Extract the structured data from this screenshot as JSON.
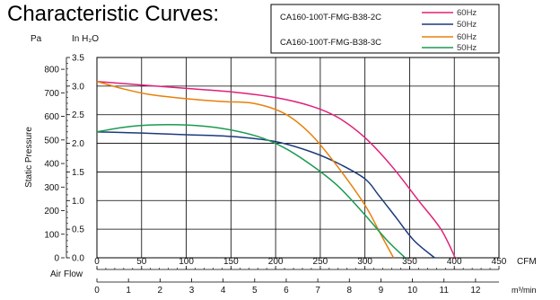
{
  "title": "Characteristic Curves:",
  "chart_data": {
    "type": "line",
    "title": "Characteristic Curves:",
    "ylabel": "Static Pressure",
    "y_units_primary": "Pa",
    "y_units_secondary": "In H₂O",
    "xlabel": "Air Flow",
    "x_units_primary": "CFM",
    "x_units_secondary": "m³/min",
    "xlim": [
      0,
      450
    ],
    "ylim": [
      0,
      3.5
    ],
    "x_ticks_cfm": [
      "0",
      "50",
      "100",
      "150",
      "200",
      "250",
      "300",
      "350",
      "400",
      "450"
    ],
    "x_ticks_m3min": [
      "0",
      "1",
      "2",
      "3",
      "4",
      "5",
      "6",
      "7",
      "8",
      "9",
      "10",
      "11",
      "12"
    ],
    "y_ticks_pa": [
      "0",
      "100",
      "200",
      "300",
      "400",
      "500",
      "600",
      "700",
      "800"
    ],
    "y_ticks_inh2o": [
      "0.0",
      "0.5",
      "1.0",
      "1.5",
      "2.0",
      "2.5",
      "3.0",
      "3.5"
    ],
    "grid": true,
    "legend_position": "top-right",
    "legend": {
      "models": [
        "CA160-100T-FMG-B38-2C",
        "CA160-100T-FMG-B38-3C"
      ],
      "entries": [
        {
          "label": "60Hz",
          "color": "#e0207a"
        },
        {
          "label": "50Hz",
          "color": "#1c3a7a"
        },
        {
          "label": "60Hz",
          "color": "#e8800a"
        },
        {
          "label": "50Hz",
          "color": "#1a9a50"
        }
      ]
    },
    "series": [
      {
        "color": "#e0207a",
        "points": [
          [
            0,
            3.08
          ],
          [
            50,
            3.02
          ],
          [
            100,
            2.96
          ],
          [
            150,
            2.9
          ],
          [
            200,
            2.8
          ],
          [
            240,
            2.65
          ],
          [
            270,
            2.45
          ],
          [
            300,
            2.1
          ],
          [
            330,
            1.6
          ],
          [
            360,
            1.0
          ],
          [
            385,
            0.5
          ],
          [
            401,
            0.0
          ]
        ]
      },
      {
        "color": "#1c3a7a",
        "points": [
          [
            0,
            2.2
          ],
          [
            50,
            2.18
          ],
          [
            100,
            2.15
          ],
          [
            150,
            2.12
          ],
          [
            200,
            2.03
          ],
          [
            240,
            1.85
          ],
          [
            270,
            1.65
          ],
          [
            300,
            1.38
          ],
          [
            315,
            1.1
          ],
          [
            335,
            0.7
          ],
          [
            355,
            0.3
          ],
          [
            378,
            0.0
          ]
        ]
      },
      {
        "color": "#e8800a",
        "points": [
          [
            0,
            3.08
          ],
          [
            30,
            2.95
          ],
          [
            60,
            2.85
          ],
          [
            100,
            2.78
          ],
          [
            140,
            2.73
          ],
          [
            175,
            2.7
          ],
          [
            210,
            2.52
          ],
          [
            240,
            2.15
          ],
          [
            270,
            1.58
          ],
          [
            300,
            0.92
          ],
          [
            318,
            0.4
          ],
          [
            332,
            0.0
          ]
        ]
      },
      {
        "color": "#1a9a50",
        "points": [
          [
            0,
            2.2
          ],
          [
            30,
            2.28
          ],
          [
            60,
            2.32
          ],
          [
            100,
            2.32
          ],
          [
            140,
            2.26
          ],
          [
            180,
            2.12
          ],
          [
            210,
            1.92
          ],
          [
            240,
            1.62
          ],
          [
            270,
            1.25
          ],
          [
            300,
            0.75
          ],
          [
            325,
            0.3
          ],
          [
            345,
            0.0
          ]
        ]
      }
    ]
  }
}
